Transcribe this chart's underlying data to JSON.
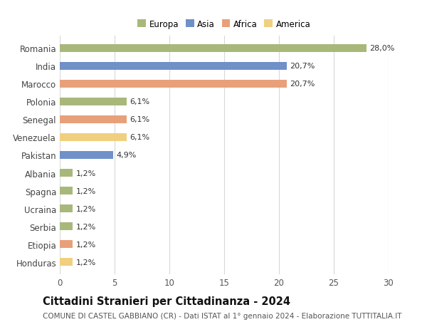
{
  "categories": [
    "Honduras",
    "Etiopia",
    "Serbia",
    "Ucraina",
    "Spagna",
    "Albania",
    "Pakistan",
    "Venezuela",
    "Senegal",
    "Polonia",
    "Marocco",
    "India",
    "Romania"
  ],
  "values": [
    1.2,
    1.2,
    1.2,
    1.2,
    1.2,
    1.2,
    4.9,
    6.1,
    6.1,
    6.1,
    20.7,
    20.7,
    28.0
  ],
  "labels": [
    "1,2%",
    "1,2%",
    "1,2%",
    "1,2%",
    "1,2%",
    "1,2%",
    "4,9%",
    "6,1%",
    "6,1%",
    "6,1%",
    "20,7%",
    "20,7%",
    "28,0%"
  ],
  "colors": [
    "#f0d080",
    "#e8a07a",
    "#a8b87a",
    "#a8b87a",
    "#a8b87a",
    "#a8b87a",
    "#7090c8",
    "#f0d080",
    "#e8a07a",
    "#a8b87a",
    "#e8a07a",
    "#7090c8",
    "#a8b87a"
  ],
  "legend_labels": [
    "Europa",
    "Asia",
    "Africa",
    "America"
  ],
  "legend_colors": [
    "#a8b87a",
    "#7090c8",
    "#e8a07a",
    "#f0d080"
  ],
  "title": "Cittadini Stranieri per Cittadinanza - 2024",
  "subtitle": "COMUNE DI CASTEL GABBIANO (CR) - Dati ISTAT al 1° gennaio 2024 - Elaborazione TUTTITALIA.IT",
  "xlim": [
    0,
    30
  ],
  "xticks": [
    0,
    5,
    10,
    15,
    20,
    25,
    30
  ],
  "background_color": "#ffffff",
  "grid_color": "#d8d8d8",
  "bar_height": 0.45,
  "title_fontsize": 10.5,
  "subtitle_fontsize": 7.5,
  "ytick_fontsize": 8.5,
  "xtick_fontsize": 8.5,
  "label_fontsize": 8,
  "legend_fontsize": 8.5
}
